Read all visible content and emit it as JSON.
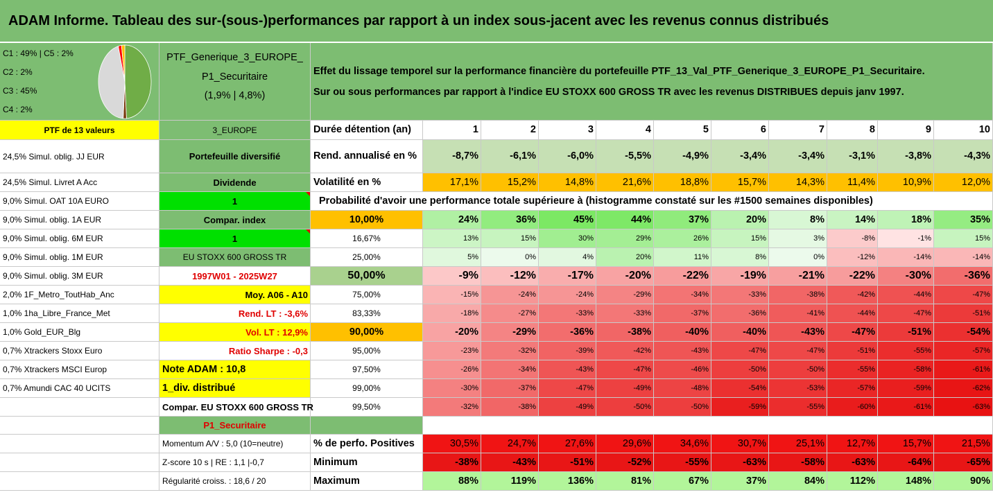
{
  "title": "ADAM Informe. Tableau des sur-(sous-)performances par rapport à un index sous-jacent avec les revenus connus distribués",
  "legend": {
    "l1": "C1 : 49% | C5 : 2%",
    "l2": "C2 : 2%",
    "l3": "C3 : 45%",
    "l4": "C4 : 2%",
    "slices": [
      {
        "label": "C1",
        "value": 49,
        "color": "#70ad47"
      },
      {
        "label": "C2",
        "value": 2,
        "color": "#7a3b10"
      },
      {
        "label": "C3",
        "value": 45,
        "color": "#d9d9d9"
      },
      {
        "label": "C4",
        "value": 2,
        "color": "#ff0000"
      },
      {
        "label": "C5",
        "value": 2,
        "color": "#ffc000"
      }
    ]
  },
  "portfolio": {
    "name1": "PTF_Generique_3_EUROPE_",
    "name2": "P1_Securitaire",
    "name3": "(1,9% | 4,8%)"
  },
  "description": {
    "line1": "Effet du lissage temporel sur la performance financière du portefeuille PTF_13_Val_PTF_Generique_3_EUROPE_P1_Securitaire.",
    "line2": "Sur ou sous performances par rapport à l'indice EU STOXX 600 GROSS TR avec les revenus DISTRIBUES depuis janv 1997."
  },
  "colA": {
    "header": "PTF de 13 valeurs",
    "items": [
      "24,5% Simul. oblig. JJ EUR",
      "24,5% Simul. Livret A Acc",
      "9,0% Simul. OAT 10A EURO",
      "9,0% Simul. oblig. 1A EUR",
      "9,0% Simul. oblig. 6M EUR",
      "9,0% Simul. oblig. 1M EUR",
      "9,0% Simul. oblig. 3M EUR",
      "2,0% 1F_Metro_ToutHab_Anc",
      "1,0% 1ha_Libre_France_Met",
      "1,0% Gold_EUR_Blg",
      "0,7% Xtrackers Stoxx Euro",
      "0,7% Xtrackers MSCI Europ",
      "0,7% Amundi CAC 40 UCITS"
    ]
  },
  "colB": {
    "header": "3_EUROPE",
    "items": [
      "Portefeuille diversifié",
      "Dividende",
      "1",
      "Compar. index",
      "1",
      "EU STOXX 600 GROSS TR",
      "1997W01 - 2025W27",
      "Moy. A06 - A10",
      "Rend. LT : -3,6%",
      "Vol. LT : 12,9%",
      "Ratio Sharpe : -0,3",
      "Note ADAM : 10,8",
      "1_div. distribué",
      "Compar. EU STOXX 600 GROSS TR",
      "P1_Securitaire",
      "Momentum A/V : 5,0 (10=neutre)",
      "Z-score 10 s | RE : 1,1 |-0,7",
      "Régularité croiss. : 18,6 / 20"
    ]
  },
  "table": {
    "duration_label": "Durée détention (an)",
    "years": [
      "1",
      "2",
      "3",
      "4",
      "5",
      "6",
      "7",
      "8",
      "9",
      "10"
    ],
    "rend_label": "Rend. annualisé en %",
    "rend": [
      "-8,7%",
      "-6,1%",
      "-6,0%",
      "-5,5%",
      "-4,9%",
      "-3,4%",
      "-3,4%",
      "-3,1%",
      "-3,8%",
      "-4,3%"
    ],
    "vol_label": "Volatilité en %",
    "vol": [
      "17,1%",
      "15,2%",
      "14,8%",
      "21,6%",
      "18,8%",
      "15,7%",
      "14,3%",
      "11,4%",
      "10,9%",
      "12,0%"
    ],
    "prob_title": "Probabilité d'avoir une performance totale supérieure à (histogramme constaté sur les #1500 semaines disponibles)",
    "prob_rows": [
      {
        "p": "10,00%",
        "v": [
          "24%",
          "36%",
          "45%",
          "44%",
          "37%",
          "20%",
          "8%",
          "14%",
          "18%",
          "35%"
        ],
        "n": [
          24,
          36,
          45,
          44,
          37,
          20,
          8,
          14,
          18,
          35
        ]
      },
      {
        "p": "16,67%",
        "v": [
          "13%",
          "15%",
          "30%",
          "29%",
          "26%",
          "15%",
          "3%",
          "-8%",
          "-1%",
          "15%"
        ],
        "n": [
          13,
          15,
          30,
          29,
          26,
          15,
          3,
          -8,
          -1,
          15
        ]
      },
      {
        "p": "25,00%",
        "v": [
          "5%",
          "0%",
          "4%",
          "20%",
          "11%",
          "8%",
          "0%",
          "-12%",
          "-14%",
          "-14%"
        ],
        "n": [
          5,
          0,
          4,
          20,
          11,
          8,
          0,
          -12,
          -14,
          -14
        ]
      },
      {
        "p": "50,00%",
        "v": [
          "-9%",
          "-12%",
          "-17%",
          "-20%",
          "-22%",
          "-19%",
          "-21%",
          "-22%",
          "-30%",
          "-36%"
        ],
        "n": [
          -9,
          -12,
          -17,
          -20,
          -22,
          -19,
          -21,
          -22,
          -30,
          -36
        ]
      },
      {
        "p": "75,00%",
        "v": [
          "-15%",
          "-24%",
          "-24%",
          "-29%",
          "-34%",
          "-33%",
          "-38%",
          "-42%",
          "-44%",
          "-47%"
        ],
        "n": [
          -15,
          -24,
          -24,
          -29,
          -34,
          -33,
          -38,
          -42,
          -44,
          -47
        ]
      },
      {
        "p": "83,33%",
        "v": [
          "-18%",
          "-27%",
          "-33%",
          "-33%",
          "-37%",
          "-36%",
          "-41%",
          "-44%",
          "-47%",
          "-51%"
        ],
        "n": [
          -18,
          -27,
          -33,
          -33,
          -37,
          -36,
          -41,
          -44,
          -47,
          -51
        ]
      },
      {
        "p": "90,00%",
        "v": [
          "-20%",
          "-29%",
          "-36%",
          "-38%",
          "-40%",
          "-40%",
          "-43%",
          "-47%",
          "-51%",
          "-54%"
        ],
        "n": [
          -20,
          -29,
          -36,
          -38,
          -40,
          -40,
          -43,
          -47,
          -51,
          -54
        ]
      },
      {
        "p": "95,00%",
        "v": [
          "-23%",
          "-32%",
          "-39%",
          "-42%",
          "-43%",
          "-47%",
          "-47%",
          "-51%",
          "-55%",
          "-57%"
        ],
        "n": [
          -23,
          -32,
          -39,
          -42,
          -43,
          -47,
          -47,
          -51,
          -55,
          -57
        ]
      },
      {
        "p": "97,50%",
        "v": [
          "-26%",
          "-34%",
          "-43%",
          "-47%",
          "-46%",
          "-50%",
          "-50%",
          "-55%",
          "-58%",
          "-61%"
        ],
        "n": [
          -26,
          -34,
          -43,
          -47,
          -46,
          -50,
          -50,
          -55,
          -58,
          -61
        ]
      },
      {
        "p": "99,00%",
        "v": [
          "-30%",
          "-37%",
          "-47%",
          "-49%",
          "-48%",
          "-54%",
          "-53%",
          "-57%",
          "-59%",
          "-62%"
        ],
        "n": [
          -30,
          -37,
          -47,
          -49,
          -48,
          -54,
          -53,
          -57,
          -59,
          -62
        ]
      },
      {
        "p": "99,50%",
        "v": [
          "-32%",
          "-38%",
          "-49%",
          "-50%",
          "-50%",
          "-59%",
          "-55%",
          "-60%",
          "-61%",
          "-63%"
        ],
        "n": [
          -32,
          -38,
          -49,
          -50,
          -50,
          -59,
          -55,
          -60,
          -61,
          -63
        ]
      }
    ],
    "pos_label": "% de perfo. Positives",
    "pos": [
      "30,5%",
      "24,7%",
      "27,6%",
      "29,6%",
      "34,6%",
      "30,7%",
      "25,1%",
      "12,7%",
      "15,7%",
      "21,5%"
    ],
    "min_label": "Minimum",
    "min": [
      "-38%",
      "-43%",
      "-51%",
      "-52%",
      "-55%",
      "-63%",
      "-58%",
      "-63%",
      "-64%",
      "-65%"
    ],
    "max_label": "Maximum",
    "max": [
      "88%",
      "119%",
      "136%",
      "81%",
      "67%",
      "37%",
      "84%",
      "112%",
      "148%",
      "90%"
    ]
  }
}
